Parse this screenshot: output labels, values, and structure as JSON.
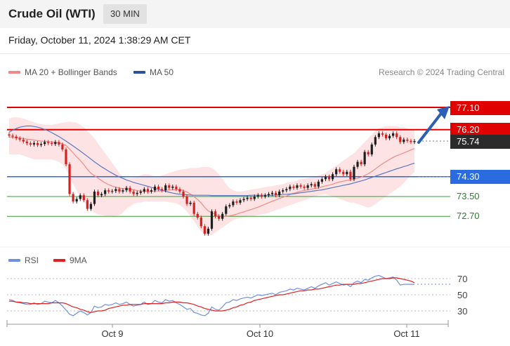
{
  "header": {
    "title": "Crude Oil (WTI)",
    "timeframe": "30 MIN",
    "datetime": "Friday, October 11, 2024 1:38:29 AM CET"
  },
  "legend": {
    "ma20": "MA 20 + Bollinger Bands",
    "ma50": "MA 50",
    "credit": "Research © 2024 Trading Central"
  },
  "rsi_legend": {
    "rsi": "RSI",
    "ma9": "9MA"
  },
  "colors": {
    "resistance": "#e00000",
    "support_strong": "#2a6be0",
    "support_weak": "#3d9a3d",
    "ma20": "#f08a8a",
    "ma50": "#5b78c2",
    "band": "#fde3e3",
    "candle_up": "#1e1e1e",
    "candle_down": "#d62020",
    "price_tag": "#2b2b2b",
    "arrow": "#2a5fb5",
    "rsi": "#6f8fe2",
    "rsi_ma": "#e02020"
  },
  "levels": {
    "r2": "77.10",
    "r1": "76.20",
    "last": "75.74",
    "s1": "74.30",
    "s2": "73.50",
    "s3": "72.70"
  },
  "chart_data": [
    {
      "type": "candlestick",
      "instrument": "Crude Oil (WTI)",
      "interval": "30 MIN",
      "x_ticks": [
        "Oct 9",
        "Oct 10",
        "Oct 11"
      ],
      "ylim": [
        71.8,
        78.0
      ],
      "levels": [
        {
          "value": 77.1,
          "kind": "resistance"
        },
        {
          "value": 76.2,
          "kind": "resistance"
        },
        {
          "value": 74.3,
          "kind": "support"
        },
        {
          "value": 73.5,
          "kind": "support"
        },
        {
          "value": 72.7,
          "kind": "support"
        }
      ],
      "last_price": 75.74,
      "forecast_target": 77.1,
      "close": [
        75.96,
        75.92,
        75.85,
        75.8,
        75.72,
        75.65,
        75.6,
        75.66,
        75.58,
        75.62,
        75.7,
        75.66,
        75.62,
        75.7,
        75.6,
        75.4,
        74.8,
        73.6,
        73.3,
        73.4,
        73.55,
        73.35,
        73.0,
        73.2,
        73.7,
        73.55,
        73.6,
        73.75,
        73.7,
        73.72,
        73.8,
        73.7,
        73.75,
        73.85,
        73.7,
        73.6,
        73.65,
        73.7,
        73.8,
        73.7,
        73.75,
        73.9,
        73.8,
        73.75,
        73.95,
        73.85,
        73.9,
        73.8,
        73.7,
        73.5,
        73.2,
        73.25,
        72.8,
        72.65,
        72.3,
        72.0,
        72.2,
        72.9,
        72.7,
        72.6,
        72.8,
        73.1,
        73.15,
        73.3,
        73.25,
        73.35,
        73.4,
        73.45,
        73.4,
        73.5,
        73.55,
        73.5,
        73.55,
        73.6,
        73.65,
        73.55,
        73.7,
        73.75,
        73.8,
        73.9,
        73.85,
        73.95,
        73.9,
        73.85,
        73.95,
        74.0,
        73.9,
        74.1,
        74.2,
        74.3,
        74.2,
        74.4,
        74.6,
        74.5,
        74.4,
        74.5,
        74.2,
        74.7,
        74.9,
        74.8,
        75.3,
        75.2,
        75.6,
        75.9,
        76.05,
        76.0,
        75.85,
        75.95,
        76.05,
        75.9,
        75.7,
        75.8,
        75.75,
        75.7,
        75.74
      ],
      "ma20": [
        75.9,
        75.89,
        75.88,
        75.86,
        75.84,
        75.82,
        75.8,
        75.78,
        75.76,
        75.74,
        75.73,
        75.72,
        75.7,
        75.69,
        75.67,
        75.63,
        75.56,
        75.42,
        75.26,
        75.1,
        74.96,
        74.79,
        74.6,
        74.44,
        74.34,
        74.24,
        74.14,
        74.05,
        73.98,
        73.92,
        73.88,
        73.84,
        73.82,
        73.82,
        73.8,
        73.77,
        73.74,
        73.72,
        73.71,
        73.7,
        73.71,
        73.72,
        73.72,
        73.73,
        73.75,
        73.76,
        73.77,
        73.78,
        73.77,
        73.74,
        73.68,
        73.6,
        73.49,
        73.38,
        73.24,
        73.06,
        72.92,
        72.85,
        72.78,
        72.72,
        72.7,
        72.7,
        72.72,
        72.75,
        72.79,
        72.84,
        72.88,
        72.93,
        72.97,
        73.02,
        73.07,
        73.13,
        73.19,
        73.25,
        73.31,
        73.36,
        73.42,
        73.47,
        73.52,
        73.58,
        73.63,
        73.67,
        73.71,
        73.74,
        73.77,
        73.8,
        73.82,
        73.85,
        73.89,
        73.93,
        73.96,
        74.0,
        74.05,
        74.09,
        74.12,
        74.15,
        74.17,
        74.2,
        74.24,
        74.28,
        74.35,
        74.42,
        74.51,
        74.61,
        74.72,
        74.82,
        74.91,
        75.0,
        75.08,
        75.15,
        75.2,
        75.26,
        75.32,
        75.38,
        75.44
      ],
      "ma20_upper": [
        76.65,
        76.7,
        76.7,
        76.68,
        76.65,
        76.6,
        76.55,
        76.5,
        76.45,
        76.42,
        76.4,
        76.4,
        76.4,
        76.42,
        76.45,
        76.48,
        76.5,
        76.52,
        76.5,
        76.48,
        76.4,
        76.3,
        76.15,
        76.0,
        75.85,
        75.65,
        75.45,
        75.25,
        75.05,
        74.85,
        74.65,
        74.45,
        74.3,
        74.25,
        74.25,
        74.25,
        74.3,
        74.35,
        74.4,
        74.4,
        74.35,
        74.3,
        74.3,
        74.35,
        74.4,
        74.45,
        74.5,
        74.55,
        74.58,
        74.6,
        74.62,
        74.65,
        74.65,
        74.66,
        74.68,
        74.7,
        74.7,
        74.65,
        74.55,
        74.4,
        74.2,
        74.0,
        73.85,
        73.75,
        73.7,
        73.7,
        73.72,
        73.75,
        73.78,
        73.8,
        73.82,
        73.85,
        73.88,
        73.9,
        73.92,
        73.95,
        73.97,
        74.0,
        74.05,
        74.08,
        74.1,
        74.15,
        74.2,
        74.22,
        74.25,
        74.28,
        74.3,
        74.35,
        74.4,
        74.45,
        74.55,
        74.65,
        74.75,
        74.85,
        74.95,
        75.05,
        75.15,
        75.25,
        75.4,
        75.55,
        75.7,
        75.85,
        76.0,
        76.15,
        76.25,
        76.3,
        76.35,
        76.35,
        76.35,
        76.35,
        76.3,
        76.3,
        76.25,
        76.2,
        76.2
      ],
      "ma20_lower": [
        75.2,
        75.2,
        75.2,
        75.2,
        75.15,
        75.1,
        75.05,
        75.0,
        75.0,
        75.0,
        75.0,
        75.0,
        75.0,
        74.95,
        74.9,
        74.8,
        74.6,
        74.3,
        74.0,
        73.75,
        73.5,
        73.3,
        73.1,
        72.95,
        72.85,
        72.78,
        72.75,
        72.72,
        72.7,
        72.7,
        72.72,
        72.75,
        72.85,
        73.0,
        73.1,
        73.2,
        73.25,
        73.25,
        73.3,
        73.3,
        73.3,
        73.3,
        73.3,
        73.3,
        73.3,
        73.28,
        73.25,
        73.22,
        73.15,
        73.05,
        72.9,
        72.7,
        72.5,
        72.3,
        72.1,
        71.95,
        71.9,
        71.95,
        72.05,
        72.15,
        72.25,
        72.35,
        72.45,
        72.55,
        72.6,
        72.62,
        72.65,
        72.68,
        72.7,
        72.72,
        72.75,
        72.78,
        72.8,
        72.85,
        72.9,
        72.95,
        73.0,
        73.05,
        73.1,
        73.15,
        73.2,
        73.25,
        73.3,
        73.35,
        73.4,
        73.45,
        73.5,
        73.55,
        73.58,
        73.6,
        73.55,
        73.5,
        73.45,
        73.4,
        73.35,
        73.3,
        73.25,
        73.25,
        73.2,
        73.15,
        73.1,
        73.05,
        73.1,
        73.2,
        73.3,
        73.4,
        73.5,
        73.6,
        73.7,
        73.8,
        73.9,
        74.05,
        74.2,
        74.35,
        74.5
      ],
      "ma50": [
        76.1,
        76.18,
        76.25,
        76.3,
        76.33,
        76.35,
        76.35,
        76.33,
        76.3,
        76.26,
        76.21,
        76.15,
        76.08,
        76.0,
        75.92,
        75.83,
        75.74,
        75.64,
        75.54,
        75.44,
        75.34,
        75.23,
        75.12,
        75.01,
        74.9,
        74.8,
        74.7,
        74.61,
        74.52,
        74.44,
        74.36,
        74.29,
        74.23,
        74.17,
        74.12,
        74.07,
        74.03,
        73.99,
        73.95,
        73.91,
        73.87,
        73.83,
        73.79,
        73.75,
        73.71,
        73.67,
        73.64,
        73.61,
        73.59,
        73.58,
        73.57,
        73.56,
        73.55,
        73.55,
        73.55,
        73.55,
        73.55,
        73.54,
        73.54,
        73.54,
        73.54,
        73.54,
        73.54,
        73.54,
        73.54,
        73.54,
        73.54,
        73.54,
        73.55,
        73.55,
        73.55,
        73.55,
        73.55,
        73.55,
        73.55,
        73.56,
        73.57,
        73.58,
        73.59,
        73.6,
        73.61,
        73.63,
        73.65,
        73.67,
        73.69,
        73.71,
        73.73,
        73.75,
        73.77,
        73.8,
        73.83,
        73.86,
        73.89,
        73.92,
        73.95,
        73.98,
        74.01,
        74.05,
        74.09,
        74.13,
        74.17,
        74.22,
        74.27,
        74.32,
        74.37,
        74.42,
        74.47,
        74.52,
        74.57,
        74.62,
        74.66,
        74.71,
        74.75,
        74.8,
        74.85
      ]
    },
    {
      "type": "line",
      "title": "RSI",
      "y_ticks": [
        30,
        50,
        70
      ],
      "series": [
        {
          "name": "RSI",
          "values": [
            44,
            43,
            41,
            40,
            39,
            38,
            38,
            40,
            38,
            39,
            42,
            41,
            40,
            43,
            40,
            36,
            31,
            26,
            24,
            27,
            30,
            28,
            25,
            28,
            36,
            34,
            35,
            38,
            37,
            38,
            40,
            38,
            39,
            41,
            38,
            36,
            37,
            38,
            41,
            38,
            39,
            43,
            41,
            40,
            44,
            42,
            43,
            40,
            38,
            35,
            32,
            33,
            28,
            27,
            25,
            24,
            27,
            35,
            32,
            31,
            35,
            40,
            41,
            44,
            43,
            45,
            46,
            47,
            46,
            48,
            50,
            49,
            50,
            51,
            52,
            50,
            53,
            54,
            55,
            57,
            56,
            58,
            57,
            56,
            58,
            60,
            58,
            61,
            63,
            65,
            62,
            64,
            66,
            64,
            62,
            63,
            60,
            65,
            67,
            65,
            69,
            68,
            71,
            73,
            74,
            72,
            70,
            71,
            72,
            68,
            62,
            63,
            63,
            63,
            63
          ]
        },
        {
          "name": "9MA",
          "values": [
            42,
            42,
            41,
            41,
            40,
            40,
            39,
            39,
            39,
            39,
            39,
            39,
            40,
            40,
            40,
            40,
            39,
            37,
            35,
            34,
            32,
            31,
            29,
            28,
            29,
            30,
            30,
            31,
            33,
            34,
            35,
            36,
            37,
            37,
            38,
            38,
            38,
            38,
            39,
            39,
            39,
            39,
            39,
            39,
            40,
            40,
            41,
            41,
            41,
            40,
            40,
            39,
            38,
            36,
            35,
            33,
            32,
            31,
            30,
            30,
            30,
            31,
            32,
            34,
            35,
            37,
            38,
            40,
            41,
            43,
            44,
            45,
            46,
            47,
            48,
            49,
            50,
            50,
            51,
            52,
            53,
            54,
            55,
            55,
            56,
            56,
            57,
            57,
            58,
            59,
            60,
            61,
            62,
            62,
            63,
            63,
            63,
            63,
            64,
            64,
            65,
            66,
            67,
            68,
            69,
            70,
            70,
            70,
            71,
            71,
            70,
            69,
            68,
            67,
            65
          ]
        }
      ]
    }
  ]
}
